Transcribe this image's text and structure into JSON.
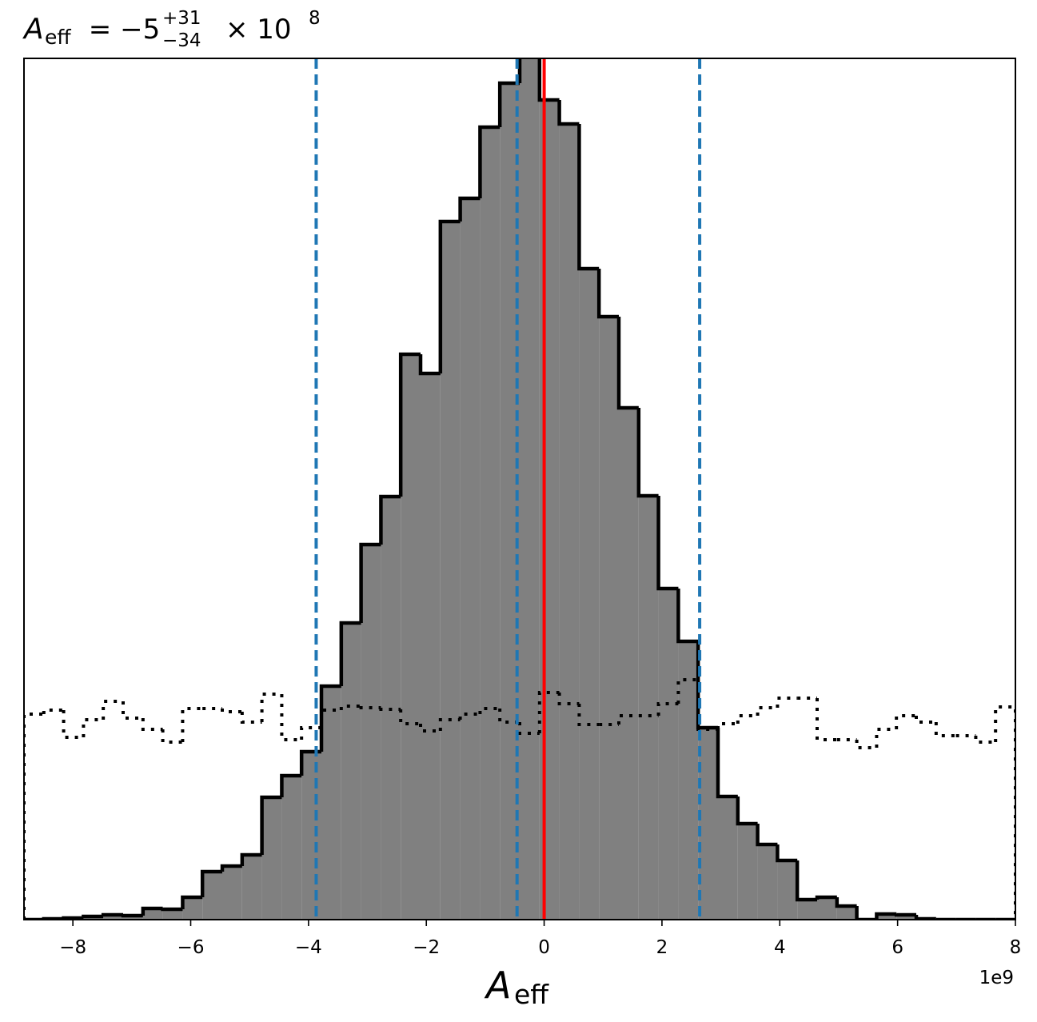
{
  "chart_data": {
    "type": "histogram",
    "title": {
      "symbol": "A",
      "symbol_sub": "eff",
      "main": " = −5",
      "sup": "+31",
      "sub": "−34",
      "times": "× 10",
      "exponent": "8"
    },
    "x_label": {
      "symbol": "A",
      "symbol_sub": "eff"
    },
    "x_offset_text": "1e9",
    "xlim": [
      -8.83,
      8.0
    ],
    "ylim": [
      0,
      1077
    ],
    "xticks": [
      {
        "value": -8,
        "label": "−8"
      },
      {
        "value": -6,
        "label": "−6"
      },
      {
        "value": -4,
        "label": "−4"
      },
      {
        "value": -2,
        "label": "−2"
      },
      0,
      2,
      4,
      6,
      8
    ],
    "bins": [
      -8.83,
      -8.493,
      -8.157,
      -7.82,
      -7.484,
      -7.147,
      -6.81,
      -6.474,
      -6.137,
      -5.801,
      -5.464,
      -5.127,
      -4.791,
      -4.454,
      -4.118,
      -3.781,
      -3.444,
      -3.108,
      -2.771,
      -2.435,
      -2.098,
      -1.761,
      -1.425,
      -1.088,
      -0.752,
      -0.415,
      -0.078,
      0.258,
      0.595,
      0.931,
      1.268,
      1.605,
      1.941,
      2.278,
      2.614,
      2.951,
      3.288,
      3.624,
      3.961,
      4.297,
      4.634,
      4.971,
      5.307,
      5.644,
      5.98,
      6.317,
      6.654,
      6.99,
      7.327,
      7.663,
      8.0
    ],
    "series": [
      {
        "color": "#808080",
        "edgecolor": "#000000",
        "linestyle": "solid",
        "values": [
          0,
          1,
          2,
          4,
          6,
          5,
          14,
          13,
          28,
          60,
          67,
          81,
          153,
          180,
          210,
          292,
          371,
          469,
          529,
          707,
          683,
          873,
          902,
          991,
          1046,
          1080,
          1025,
          995,
          814,
          754,
          640,
          530,
          414,
          348,
          240,
          154,
          120,
          94,
          74,
          25,
          28,
          17,
          0,
          7,
          6,
          1,
          0,
          0,
          0,
          0
        ]
      },
      {
        "edgecolor": "#000000",
        "linestyle": "dotted",
        "values": [
          257,
          262,
          228,
          250,
          273,
          252,
          238,
          222,
          264,
          264,
          260,
          247,
          282,
          225,
          240,
          262,
          267,
          265,
          263,
          245,
          236,
          250,
          257,
          264,
          247,
          233,
          284,
          270,
          244,
          244,
          255,
          255,
          270,
          300,
          238,
          245,
          255,
          265,
          277,
          277,
          225,
          225,
          215,
          238,
          255,
          247,
          230,
          230,
          222,
          266
        ]
      }
    ],
    "vlines": [
      {
        "x": -3.87,
        "color": "#1f77b4",
        "linestyle": "dashed"
      },
      {
        "x": -0.46,
        "color": "#1f77b4",
        "linestyle": "dashed"
      },
      {
        "x": 2.64,
        "color": "#1f77b4",
        "linestyle": "dashed"
      },
      {
        "x": 0,
        "color": "#ff0000",
        "linestyle": "solid"
      }
    ]
  }
}
